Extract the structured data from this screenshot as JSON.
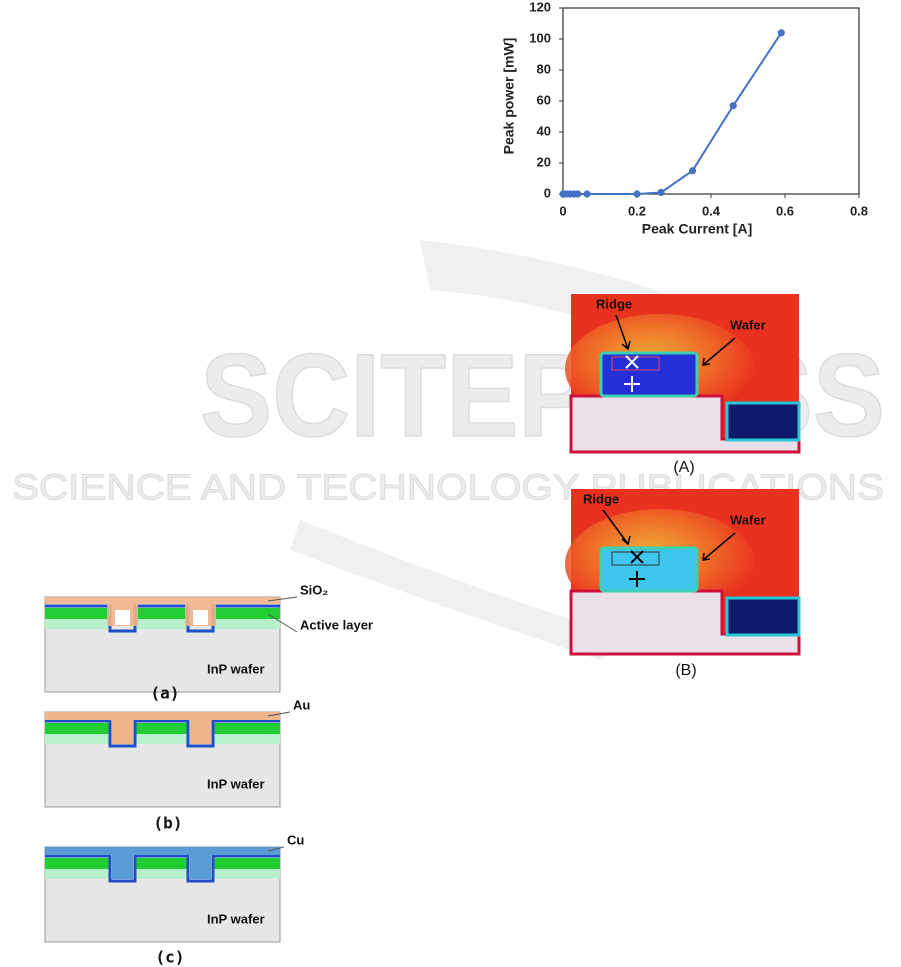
{
  "chart_data": {
    "type": "line",
    "x_label": "Peak Current [A]",
    "y_label": "Peak power [mW]",
    "x": [
      0,
      0.005,
      0.01,
      0.02,
      0.03,
      0.04,
      0.065,
      0.2,
      0.265,
      0.35,
      0.46,
      0.59
    ],
    "series": [
      {
        "color": "#4472c4",
        "values": [
          0,
          0,
          0,
          0,
          0,
          0,
          0,
          0,
          1,
          15,
          57,
          104
        ]
      }
    ],
    "xlim": [
      0,
      0.8
    ],
    "xticks": [
      0,
      0.2,
      0.4,
      0.6,
      0.8
    ],
    "ylim": [
      0,
      120
    ],
    "yticks": [
      0,
      20,
      40,
      60,
      80,
      100,
      120
    ]
  },
  "watermark": {
    "title": "SCITEPRESS",
    "subtitle": "SCIENCE AND TECHNOLOGY PUBLICATIONS"
  },
  "thermal_figure": {
    "panels": [
      {
        "label": "(A)",
        "ridge": "Ridge",
        "wafer": "Wafer"
      },
      {
        "label": "(B)",
        "ridge": "Ridge",
        "wafer": "Wafer"
      }
    ]
  },
  "process_figure": {
    "panels": [
      {
        "label": "(a)",
        "layer_labels": [
          "SiO₂",
          "Active layer"
        ],
        "wafer": "InP wafer"
      },
      {
        "label": "(b)",
        "layer_labels": [
          "Au"
        ],
        "wafer": "InP wafer"
      },
      {
        "label": "(c)",
        "layer_labels": [
          "Cu"
        ],
        "wafer": "InP wafer"
      }
    ]
  }
}
